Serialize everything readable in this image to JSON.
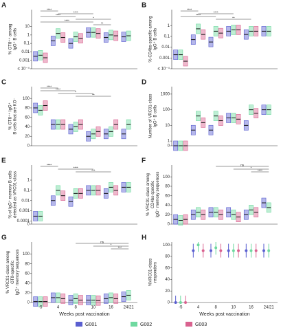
{
  "legend": [
    {
      "name": "G001",
      "color": "#5a5fd0"
    },
    {
      "name": "G002",
      "color": "#6fd9a0"
    },
    {
      "name": "G003",
      "color": "#d9628f"
    }
  ],
  "chart_data": [
    {
      "type": "box",
      "label": "A",
      "log": true,
      "ylabel": [
        "% GT8⁺⁺ among",
        "IgG⁺ B cells"
      ],
      "ylim": [
        0.0001,
        1000
      ],
      "yticks": [
        10,
        1,
        0.1,
        0.01,
        0.001,
        {
          "value": 0.0001,
          "label": "≤ 10⁻⁴"
        }
      ],
      "series": [
        {
          "values": [
            0.003,
            0.2,
            0.1,
            2,
            0.5,
            0.6
          ]
        },
        {
          "values": [
            0.004,
            1.5,
            0.6,
            2,
            1,
            0.8
          ]
        },
        {
          "values": [
            0.002,
            0.5,
            0.4,
            1.5,
            0.8,
            null
          ]
        }
      ],
      "brackets": [
        {
          "start": "-5",
          "end": "4",
          "label": "****"
        },
        {
          "start": "4",
          "end": "10",
          "label": "****"
        },
        {
          "start": "-5",
          "end": "8",
          "label": "****"
        },
        {
          "start": "8",
          "end": "16",
          "label": "*"
        },
        {
          "start": "-5",
          "end": "10",
          "label": "****"
        },
        {
          "start": "10",
          "end": "16",
          "label": "**"
        }
      ]
    },
    {
      "type": "box",
      "label": "B",
      "log": true,
      "ylabel": [
        "% CD4bs-specific among",
        "IgG⁺ B cells"
      ],
      "ylim": [
        0.0001,
        30
      ],
      "yticks": [
        1,
        0.1,
        0.01,
        0.001,
        {
          "value": 0.0001,
          "label": "≤ 10⁻⁴"
        }
      ],
      "series": [
        {
          "values": [
            0.002,
            0.05,
            0.03,
            0.3,
            0.15,
            0.3
          ]
        },
        {
          "values": [
            0.002,
            0.5,
            0.3,
            0.4,
            0.3,
            0.3
          ]
        },
        {
          "values": [
            0.0005,
            0.15,
            0.2,
            0.4,
            0.3,
            null
          ]
        }
      ],
      "brackets": [
        {
          "start": "-5",
          "end": "4",
          "label": "****"
        },
        {
          "start": "4",
          "end": "10",
          "label": "****"
        },
        {
          "start": "-5",
          "end": "8",
          "label": "****"
        },
        {
          "start": "8",
          "end": "16",
          "label": "**"
        }
      ]
    },
    {
      "type": "box",
      "label": "C",
      "log": false,
      "ylabel": [
        "% GT8⁺⁺ IgG⁺",
        "B cells that are KO⁻"
      ],
      "ylim": [
        0,
        125
      ],
      "yticks": [
        0,
        20,
        40,
        60,
        80,
        100
      ],
      "series": [
        {
          "values": [
            80,
            45,
            35,
            20,
            25,
            25
          ]
        },
        {
          "values": [
            75,
            45,
            40,
            25,
            30,
            45
          ]
        },
        {
          "values": [
            85,
            45,
            45,
            30,
            45,
            null
          ]
        }
      ],
      "brackets": [
        {
          "start": "-5",
          "end": "4",
          "label": "****"
        },
        {
          "start": "-5",
          "end": "8",
          "label": "****"
        },
        {
          "start": "4",
          "end": "10",
          "label": "*"
        },
        {
          "start": "8",
          "end": "16",
          "label": "**"
        }
      ]
    },
    {
      "type": "box",
      "label": "D",
      "log": true,
      "ylabel": [
        "Number of VRC01-class",
        "IgG⁺ B cells"
      ],
      "ylim": [
        0.5,
        3000
      ],
      "yticks": [
        1000,
        100,
        10,
        1,
        {
          "value": 0.5,
          "label": "0"
        }
      ],
      "series": [
        {
          "values": [
            0.5,
            5,
            5,
            30,
            10,
            100
          ]
        },
        {
          "values": [
            0.5,
            40,
            40,
            30,
            100,
            100
          ]
        },
        {
          "values": [
            0.5,
            15,
            20,
            25,
            60,
            null
          ]
        }
      ],
      "brackets": []
    },
    {
      "type": "box",
      "label": "E",
      "log": true,
      "ylabel": [
        "% of IgG⁺ memory B cells",
        "detected as VRC01-class"
      ],
      "ylim": [
        5e-05,
        30
      ],
      "yticks": [
        1,
        0.1,
        0.01,
        0.001,
        0.0001,
        {
          "value": 5e-05,
          "label": "0"
        }
      ],
      "series": [
        {
          "values": [
            0.0003,
            0.01,
            0.008,
            0.1,
            0.05,
            0.2
          ]
        },
        {
          "values": [
            0.0003,
            0.1,
            0.05,
            0.1,
            0.2,
            0.2
          ]
        },
        {
          "values": [
            null,
            0.03,
            0.05,
            0.1,
            0.1,
            null
          ]
        }
      ],
      "brackets": [
        {
          "start": "-5",
          "end": "4",
          "label": "****"
        },
        {
          "start": "4",
          "end": "10",
          "label": "****"
        },
        {
          "start": "8",
          "end": "16",
          "label": "***"
        }
      ]
    },
    {
      "type": "box",
      "label": "F",
      "log": false,
      "ylabel": [
        "% VRC01-class among",
        "CD4bs-specific",
        "IgG⁺ memory sequences"
      ],
      "ylim": [
        0,
        125
      ],
      "yticks": [
        0,
        20,
        40,
        60,
        80,
        100
      ],
      "series": [
        {
          "values": [
            10,
            20,
            25,
            25,
            20,
            45
          ]
        },
        {
          "values": [
            8,
            25,
            25,
            20,
            30,
            35
          ]
        },
        {
          "values": [
            10,
            20,
            20,
            15,
            25,
            null
          ]
        }
      ],
      "brackets": [
        {
          "start": "8",
          "end": "24/21",
          "label": "ns"
        },
        {
          "start": "10",
          "end": "24/21",
          "label": "*"
        },
        {
          "start": "16",
          "end": "24/21",
          "label": "****"
        }
      ]
    },
    {
      "type": "box",
      "label": "G",
      "log": false,
      "ylabel": [
        "% VRC01-class among",
        "GT8-specific",
        "IgG⁺ memory sequences"
      ],
      "ylim": [
        0,
        125
      ],
      "yticks": [
        0,
        20,
        40,
        60,
        80,
        100
      ],
      "categories": [
        "-5",
        "4",
        "8",
        "10",
        "16",
        "24/21"
      ],
      "x_label": "Weeks post vaccination",
      "series": [
        {
          "values": [
            2,
            10,
            5,
            5,
            8,
            12
          ]
        },
        {
          "values": [
            2,
            10,
            8,
            5,
            10,
            15
          ]
        },
        {
          "values": [
            2,
            8,
            5,
            4,
            8,
            null
          ]
        }
      ],
      "brackets": [
        {
          "start": "8",
          "end": "24/21",
          "label": "ns"
        },
        {
          "start": "10",
          "end": "24/21",
          "label": "*"
        },
        {
          "start": "16",
          "end": "24/21",
          "label": "***"
        }
      ]
    },
    {
      "type": "dot",
      "label": "H",
      "log": false,
      "ylabel": [
        "%VRC01-class",
        "responders"
      ],
      "ylim": [
        0,
        105
      ],
      "yticks": [
        0,
        20,
        40,
        60,
        80,
        100
      ],
      "categories": [
        "-5",
        "4",
        "8",
        "10",
        "16",
        "24/21"
      ],
      "x_label": "Weeks post vaccination",
      "series": [
        {
          "values": [
            0,
            90,
            90,
            90,
            90,
            90
          ]
        },
        {
          "values": [
            0,
            100,
            95,
            90,
            90,
            90
          ]
        },
        {
          "values": [
            0,
            90,
            90,
            90,
            90,
            null
          ]
        }
      ],
      "brackets": []
    }
  ]
}
